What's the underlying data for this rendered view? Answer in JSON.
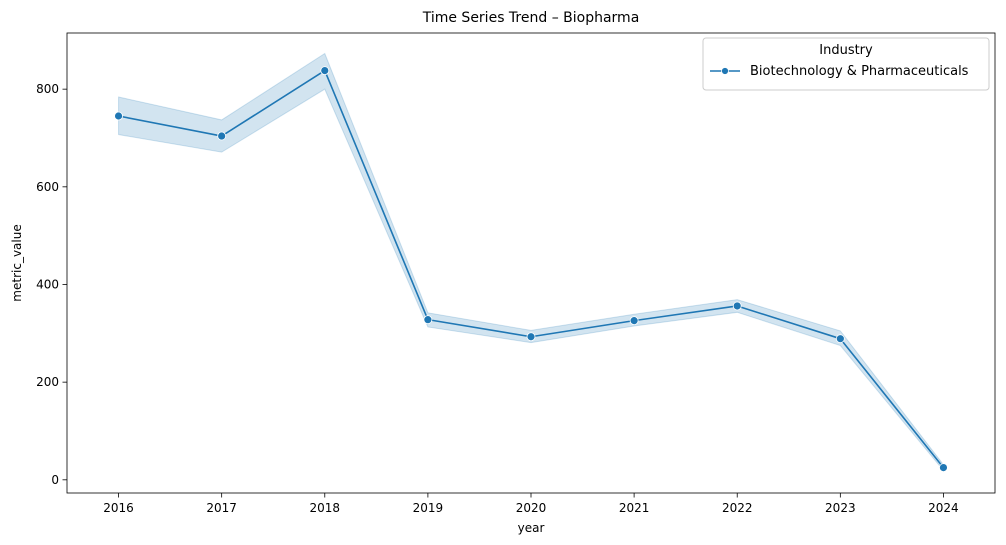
{
  "chart_data": {
    "type": "line",
    "title": "Time Series Trend – Biopharma",
    "xlabel": "year",
    "ylabel": "metric_value",
    "x": [
      2016,
      2017,
      2018,
      2019,
      2020,
      2021,
      2022,
      2023,
      2024
    ],
    "x_ticks": [
      "2016",
      "2017",
      "2018",
      "2019",
      "2020",
      "2021",
      "2022",
      "2023",
      "2024"
    ],
    "y_ticks": [
      0,
      200,
      400,
      600,
      800
    ],
    "ylim": [
      -27,
      915
    ],
    "xlim": [
      2015.5,
      2024.5
    ],
    "legend": {
      "title": "Industry",
      "placement": "top-right"
    },
    "series": [
      {
        "name": "Biotechnology & Pharmaceuticals",
        "color": "#1f77b4",
        "values": [
          745,
          704,
          838,
          328,
          293,
          326,
          356,
          289,
          25
        ],
        "ci_low": [
          707,
          671,
          800,
          313,
          281,
          315,
          343,
          275,
          19
        ],
        "ci_high": [
          784,
          737,
          873,
          342,
          306,
          339,
          369,
          305,
          31
        ]
      }
    ]
  }
}
